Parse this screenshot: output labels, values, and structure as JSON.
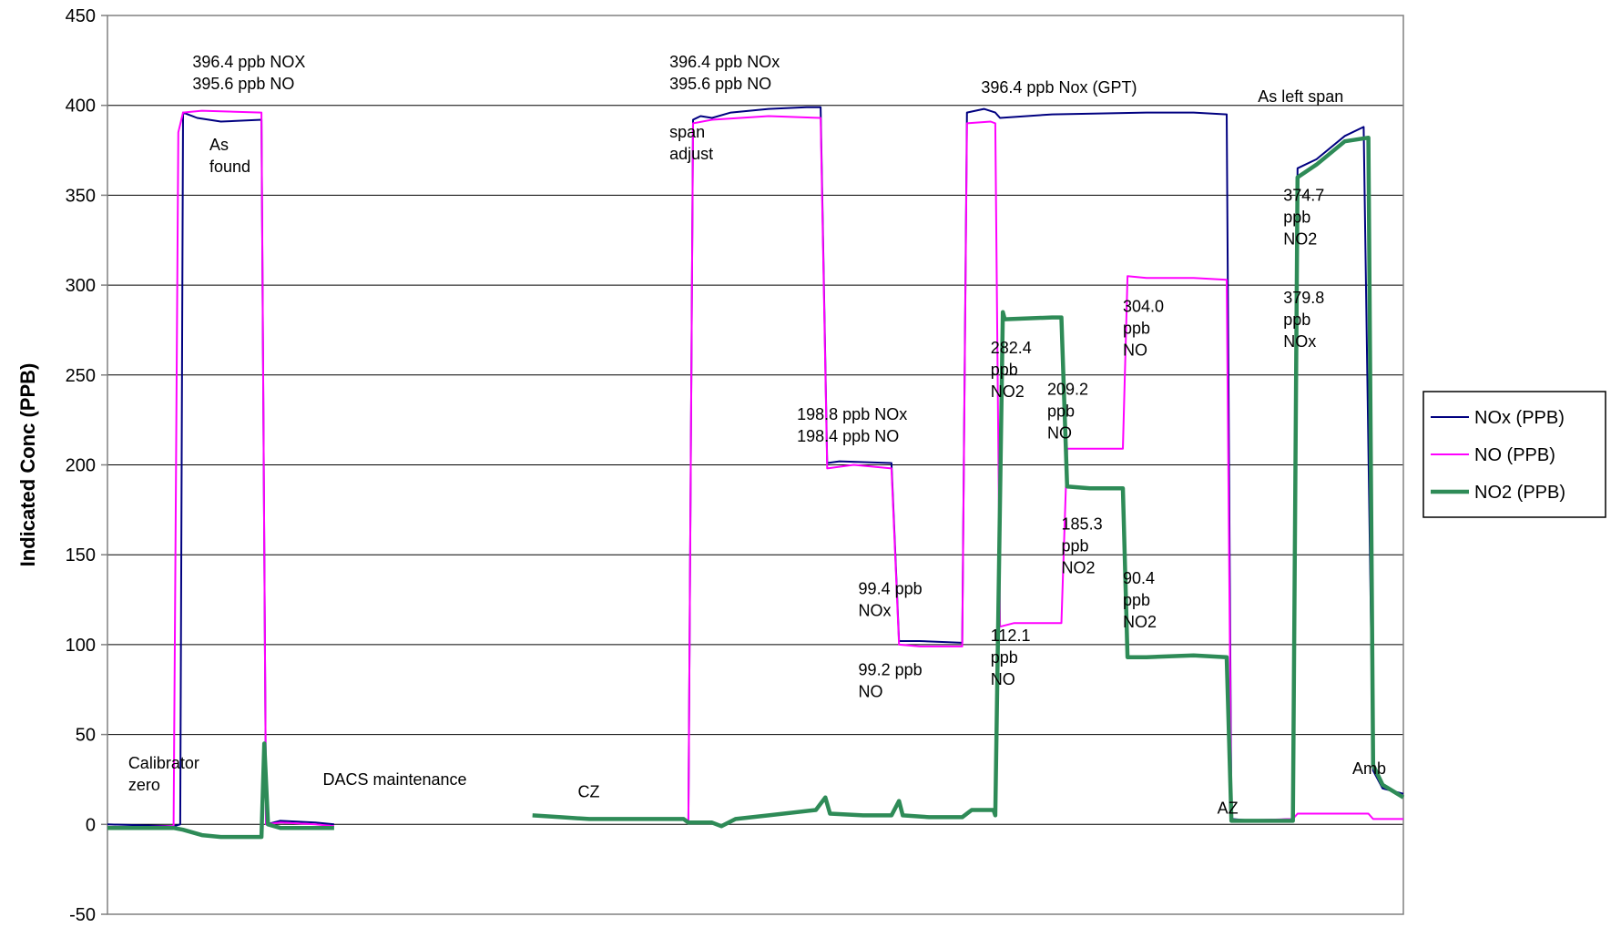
{
  "chart_data": {
    "type": "line",
    "title": "",
    "xlabel": "",
    "ylabel": "Indicated Conc (PPB)",
    "ylim": [
      -50,
      450
    ],
    "yticks": [
      "-50",
      "0",
      "50",
      "100",
      "150",
      "200",
      "250",
      "300",
      "350",
      "400",
      "450"
    ],
    "grid": true,
    "legend_position": "right",
    "series": [
      {
        "name": "NOx (PPB)",
        "color": "#000080",
        "segments": [
          [
            [
              0,
              0
            ],
            [
              70,
              -1
            ],
            [
              77,
              0
            ],
            [
              80,
              396
            ],
            [
              95,
              393
            ],
            [
              120,
              391
            ],
            [
              163,
              392
            ],
            [
              168,
              0
            ],
            [
              183,
              2
            ],
            [
              220,
              1
            ],
            [
              240,
              0
            ]
          ],
          [
            [
              615,
              1
            ],
            [
              620,
              392
            ],
            [
              628,
              394
            ],
            [
              640,
              393
            ],
            [
              660,
              396
            ],
            [
              700,
              398
            ],
            [
              740,
              399
            ],
            [
              755,
              399
            ],
            [
              762,
              201
            ],
            [
              775,
              202
            ],
            [
              830,
              201
            ],
            [
              838,
              102
            ],
            [
              860,
              102
            ],
            [
              905,
              101
            ],
            [
              910,
              396
            ],
            [
              928,
              398
            ],
            [
              940,
              396
            ],
            [
              945,
              393
            ],
            [
              1000,
              395
            ],
            [
              1100,
              396
            ],
            [
              1150,
              396
            ],
            [
              1185,
              395
            ],
            [
              1190,
              3
            ],
            [
              1215,
              2
            ],
            [
              1255,
              3
            ],
            [
              1260,
              365
            ],
            [
              1280,
              370
            ],
            [
              1310,
              383
            ],
            [
              1330,
              388
            ],
            [
              1340,
              30
            ],
            [
              1350,
              20
            ],
            [
              1372,
              17
            ]
          ]
        ]
      },
      {
        "name": "NO (PPB)",
        "color": "#FF00FF",
        "segments": [
          [
            [
              0,
              -2
            ],
            [
              70,
              -1
            ],
            [
              75,
              385
            ],
            [
              80,
              396
            ],
            [
              100,
              397
            ],
            [
              163,
              396
            ],
            [
              168,
              0
            ],
            [
              183,
              1
            ],
            [
              220,
              0
            ],
            [
              240,
              -1
            ]
          ],
          [
            [
              615,
              1
            ],
            [
              620,
              390
            ],
            [
              640,
              392
            ],
            [
              700,
              394
            ],
            [
              755,
              393
            ],
            [
              762,
              198
            ],
            [
              790,
              200
            ],
            [
              830,
              198
            ],
            [
              838,
              100
            ],
            [
              860,
              99
            ],
            [
              905,
              99
            ],
            [
              910,
              390
            ],
            [
              935,
              391
            ],
            [
              940,
              390
            ],
            [
              945,
              110
            ],
            [
              960,
              112
            ],
            [
              1010,
              112
            ],
            [
              1016,
              209
            ],
            [
              1030,
              209
            ],
            [
              1075,
              209
            ],
            [
              1080,
              305
            ],
            [
              1100,
              304
            ],
            [
              1150,
              304
            ],
            [
              1185,
              303
            ],
            [
              1190,
              2
            ],
            [
              1255,
              3
            ],
            [
              1260,
              6
            ],
            [
              1280,
              6
            ],
            [
              1335,
              6
            ],
            [
              1340,
              3
            ],
            [
              1372,
              3
            ]
          ]
        ]
      },
      {
        "name": "NO2 (PPB)",
        "color": "#2E8B57",
        "segments": [
          [
            [
              0,
              -2
            ],
            [
              70,
              -2
            ],
            [
              80,
              -3
            ],
            [
              100,
              -6
            ],
            [
              120,
              -7
            ],
            [
              163,
              -7
            ],
            [
              166,
              45
            ],
            [
              170,
              0
            ],
            [
              183,
              -2
            ],
            [
              220,
              -2
            ],
            [
              240,
              -2
            ]
          ],
          [
            [
              450,
              5
            ],
            [
              480,
              4
            ],
            [
              510,
              3
            ],
            [
              540,
              3
            ],
            [
              570,
              3
            ],
            [
              610,
              3
            ],
            [
              615,
              1
            ],
            [
              640,
              1
            ],
            [
              650,
              -1
            ],
            [
              665,
              3
            ],
            [
              700,
              5
            ],
            [
              750,
              8
            ],
            [
              760,
              15
            ],
            [
              765,
              6
            ],
            [
              800,
              5
            ],
            [
              830,
              5
            ],
            [
              838,
              13
            ],
            [
              842,
              5
            ],
            [
              870,
              4
            ],
            [
              905,
              4
            ],
            [
              915,
              8
            ],
            [
              938,
              8
            ],
            [
              940,
              5
            ],
            [
              948,
              285
            ],
            [
              950,
              281
            ],
            [
              1000,
              282
            ],
            [
              1010,
              282
            ],
            [
              1016,
              188
            ],
            [
              1040,
              187
            ],
            [
              1075,
              187
            ],
            [
              1080,
              93
            ],
            [
              1100,
              93
            ],
            [
              1150,
              94
            ],
            [
              1185,
              93
            ],
            [
              1190,
              2
            ],
            [
              1255,
              2
            ],
            [
              1260,
              360
            ],
            [
              1280,
              367
            ],
            [
              1310,
              380
            ],
            [
              1335,
              382
            ],
            [
              1340,
              33
            ],
            [
              1350,
              22
            ],
            [
              1372,
              15
            ]
          ]
        ]
      }
    ],
    "annotations": [
      {
        "lines": [
          "396.4 ppb NOX",
          "395.6 ppb NO"
        ],
        "x": 90,
        "y": 421
      },
      {
        "lines": [
          "As",
          "found"
        ],
        "x": 108,
        "y": 375
      },
      {
        "lines": [
          "Calibrator",
          "zero"
        ],
        "x": 22,
        "y": 31
      },
      {
        "lines": [
          "DACS maintenance"
        ],
        "x": 228,
        "y": 22
      },
      {
        "lines": [
          "CZ"
        ],
        "x": 498,
        "y": 15
      },
      {
        "lines": [
          "396.4 ppb NOx",
          "395.6 ppb NO"
        ],
        "x": 595,
        "y": 421
      },
      {
        "lines": [
          "span",
          "adjust"
        ],
        "x": 595,
        "y": 382
      },
      {
        "lines": [
          "198.8 ppb NOx",
          "198.4 ppb NO"
        ],
        "x": 730,
        "y": 225
      },
      {
        "lines": [
          "99.4 ppb",
          "NOx"
        ],
        "x": 795,
        "y": 128
      },
      {
        "lines": [
          "99.2 ppb",
          "NO"
        ],
        "x": 795,
        "y": 83
      },
      {
        "lines": [
          "396.4 ppb Nox (GPT)"
        ],
        "x": 925,
        "y": 407
      },
      {
        "lines": [
          "282.4",
          "ppb",
          "NO2"
        ],
        "x": 935,
        "y": 262
      },
      {
        "lines": [
          "209.2",
          "ppb",
          "NO"
        ],
        "x": 995,
        "y": 239
      },
      {
        "lines": [
          "304.0",
          "ppb",
          "NO"
        ],
        "x": 1075,
        "y": 285
      },
      {
        "lines": [
          "185.3",
          "ppb",
          "NO2"
        ],
        "x": 1010,
        "y": 164
      },
      {
        "lines": [
          "90.4",
          "ppb",
          "NO2"
        ],
        "x": 1075,
        "y": 134
      },
      {
        "lines": [
          "112.1",
          "ppb",
          "NO"
        ],
        "x": 935,
        "y": 102
      },
      {
        "lines": [
          "As left span"
        ],
        "x": 1218,
        "y": 402
      },
      {
        "lines": [
          "374.7",
          "ppb",
          "NO2"
        ],
        "x": 1245,
        "y": 347
      },
      {
        "lines": [
          "379.8",
          "ppb",
          "NOx"
        ],
        "x": 1245,
        "y": 290
      },
      {
        "lines": [
          "AZ"
        ],
        "x": 1175,
        "y": 6
      },
      {
        "lines": [
          "Amb"
        ],
        "x": 1318,
        "y": 28
      }
    ]
  }
}
